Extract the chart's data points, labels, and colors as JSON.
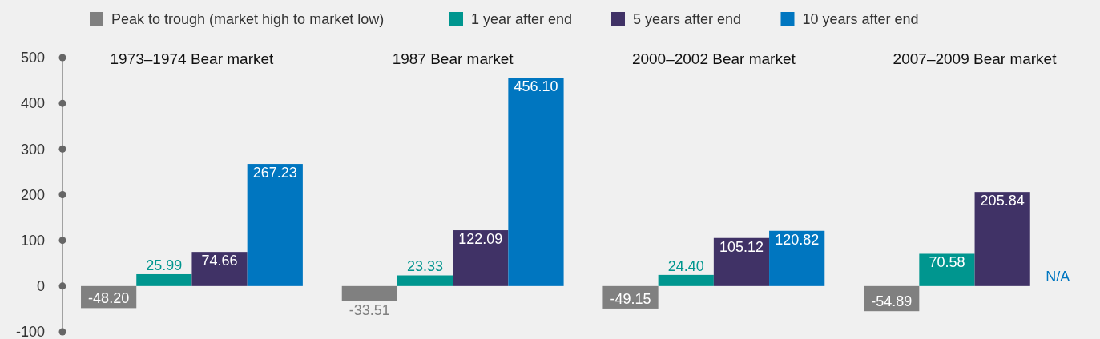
{
  "chart_data": {
    "type": "bar",
    "categories": [
      "1973–1974 Bear market",
      "1987 Bear market",
      "2000–2002 Bear market",
      "2007–2009 Bear market"
    ],
    "series": [
      {
        "name": "Peak to trough (market high to market low)",
        "color": "#808080",
        "values": [
          -48.2,
          -33.51,
          -49.15,
          -54.89
        ],
        "value_labels": [
          "-48.20",
          "-33.51",
          "-49.15",
          "-54.89"
        ]
      },
      {
        "name": "1 year after end",
        "color": "#00968f",
        "values": [
          25.99,
          23.33,
          24.4,
          70.58
        ],
        "value_labels": [
          "25.99",
          "23.33",
          "24.40",
          "70.58"
        ]
      },
      {
        "name": "5 years after end",
        "color": "#403266",
        "values": [
          74.66,
          122.09,
          105.12,
          205.84
        ],
        "value_labels": [
          "74.66",
          "122.09",
          "105.12",
          "205.84"
        ]
      },
      {
        "name": "10 years after end",
        "color": "#0076c0",
        "values": [
          267.23,
          456.1,
          120.82,
          null
        ],
        "value_labels": [
          "267.23",
          "456.10",
          "120.82",
          "N/A"
        ]
      }
    ],
    "ylim": [
      -100,
      500
    ],
    "yticks": [
      -100,
      0,
      100,
      200,
      300,
      400,
      500
    ],
    "grid": false,
    "legend": "top"
  }
}
